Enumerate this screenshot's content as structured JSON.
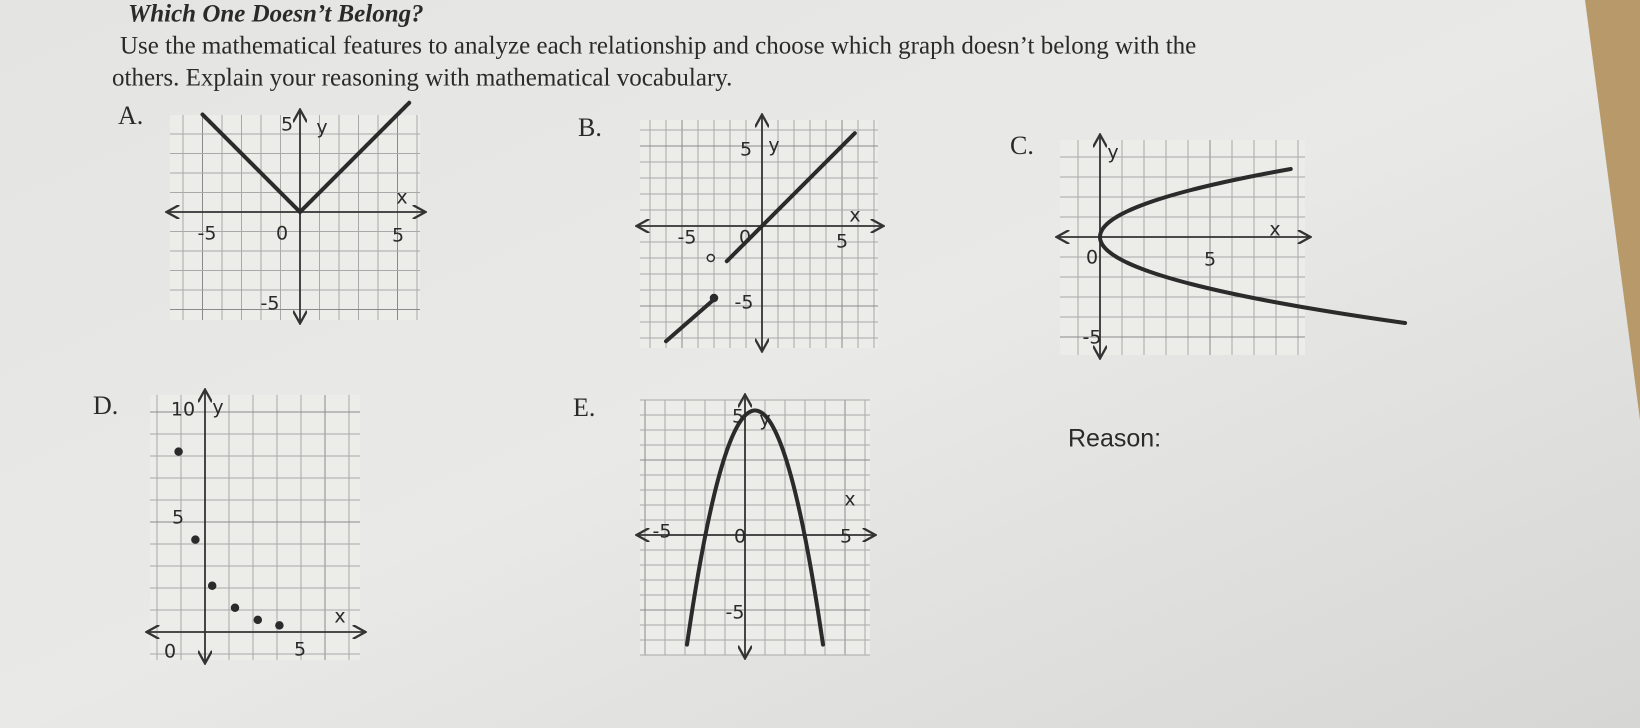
{
  "header": {
    "title": "Which One Doesn’t Belong?",
    "instructions": [
      "Use the mathematical features to analyze each relationship and choose which graph doesn’t belong with the",
      "others. Explain your reasoning with mathematical vocabulary."
    ]
  },
  "graphs": [
    {
      "letter": "A.",
      "labels": [
        "5",
        "y",
        "x",
        "-5",
        "0",
        "5",
        "-5"
      ]
    },
    {
      "letter": "B.",
      "labels": [
        "5",
        "y",
        "x",
        "-5",
        "0",
        "5",
        "-5"
      ]
    },
    {
      "letter": "C.",
      "labels": [
        "y",
        "x",
        "0",
        "5",
        "-5"
      ]
    },
    {
      "letter": "D.",
      "labels": [
        "10",
        "y",
        "5",
        "x",
        "0",
        "5"
      ]
    },
    {
      "letter": "E.",
      "labels": [
        "5",
        "y",
        "x",
        "-5",
        "0",
        "5",
        "-5"
      ]
    }
  ],
  "reason": "Reason:"
}
